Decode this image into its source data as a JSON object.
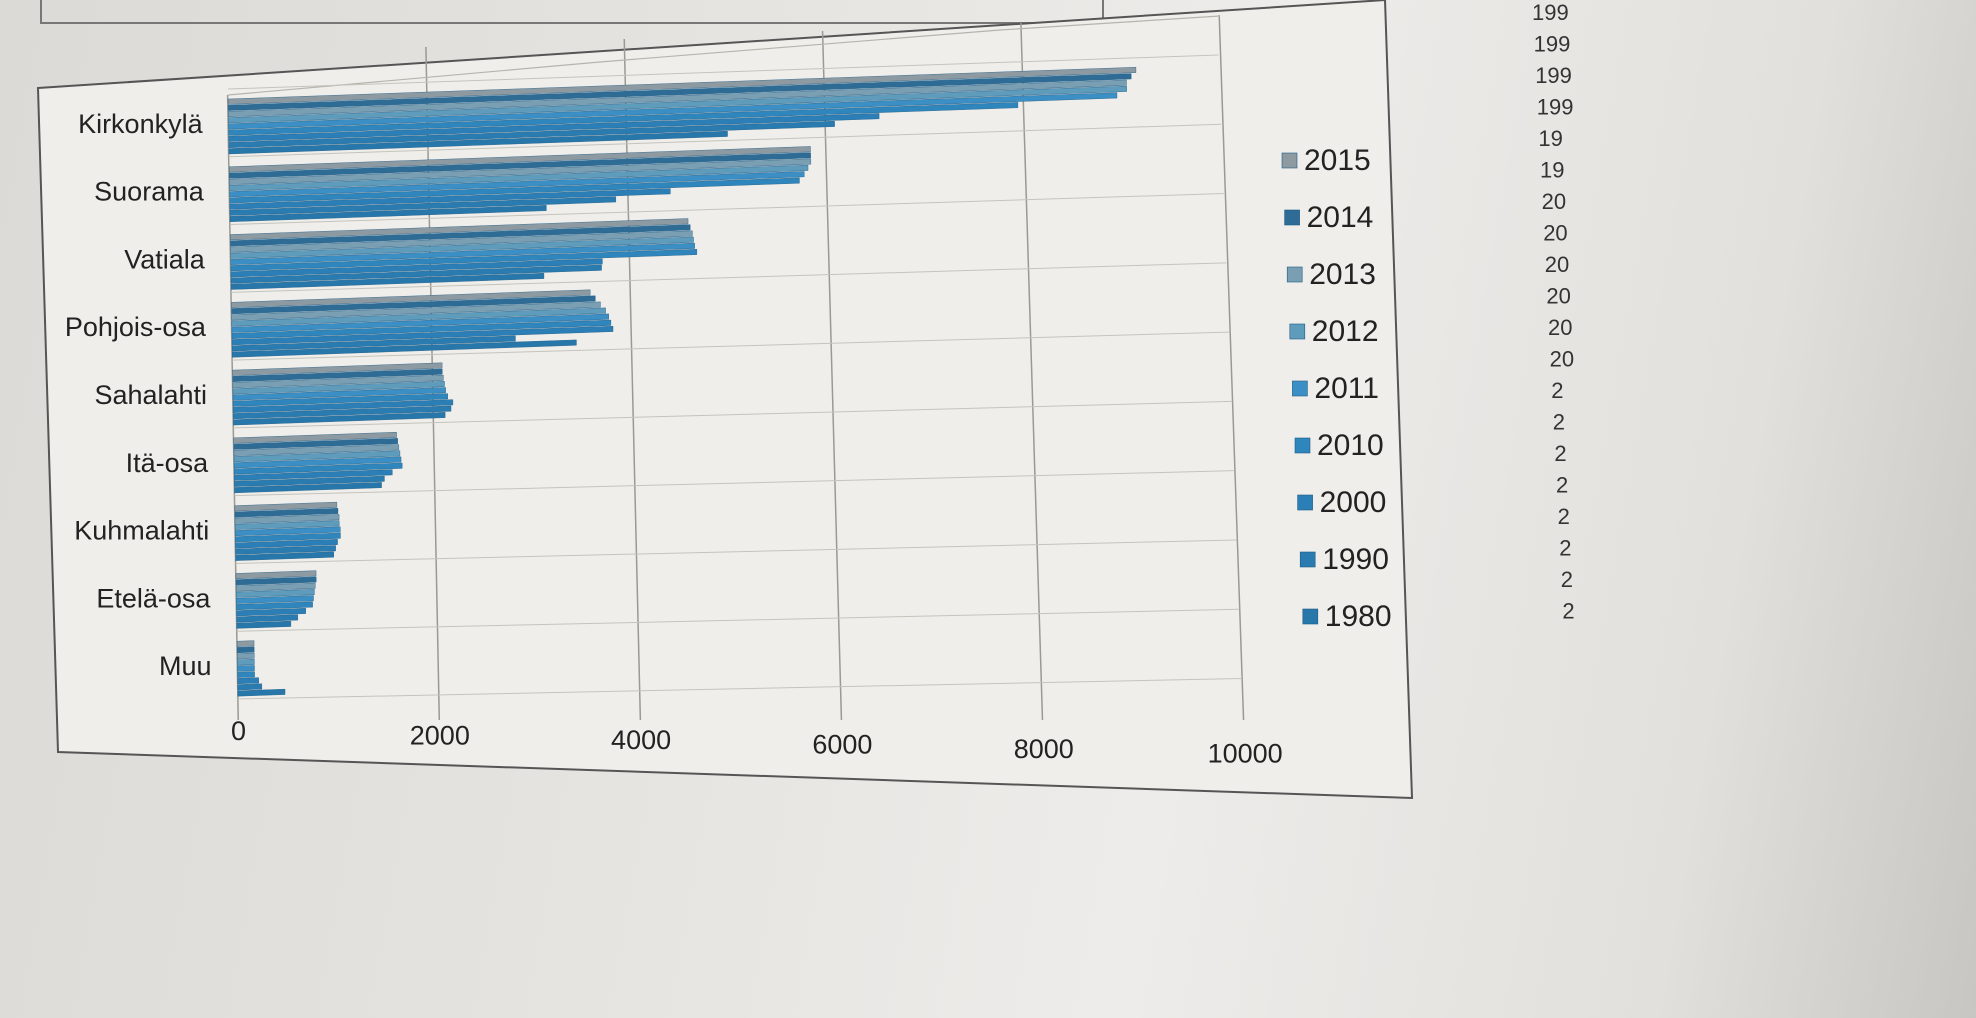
{
  "chart_data": {
    "type": "bar",
    "orientation": "horizontal",
    "title": "",
    "xlabel": "",
    "ylabel": "",
    "categories": [
      "Kirkonkylä",
      "Suorama",
      "Vatiala",
      "Pohjois-osa",
      "Sahalahti",
      "Itä-osa",
      "Kuhmalahti",
      "Etelä-osa",
      "Muu"
    ],
    "x_ticks": [
      "0",
      "2000",
      "4000",
      "6000",
      "8000",
      "10000"
    ],
    "xlim": [
      0,
      10000
    ],
    "grid": "vertical",
    "legend_position": "right",
    "series": [
      {
        "name": "2015",
        "color": "#8e9aa2",
        "values": [
          9150,
          5850,
          4600,
          3600,
          2100,
          1630,
          1020,
          800,
          170
        ]
      },
      {
        "name": "2014",
        "color": "#2e6c95",
        "values": [
          9100,
          5850,
          4620,
          3650,
          2100,
          1640,
          1030,
          800,
          170
        ]
      },
      {
        "name": "2013",
        "color": "#7a9eb2",
        "values": [
          9050,
          5850,
          4640,
          3700,
          2110,
          1650,
          1040,
          790,
          170
        ]
      },
      {
        "name": "2012",
        "color": "#5f9bbb",
        "values": [
          9050,
          5820,
          4650,
          3750,
          2120,
          1660,
          1040,
          780,
          170
        ]
      },
      {
        "name": "2011",
        "color": "#3c8fc4",
        "values": [
          8950,
          5780,
          4660,
          3780,
          2130,
          1670,
          1050,
          770,
          170
        ]
      },
      {
        "name": "2010",
        "color": "#2f86bd",
        "values": [
          7950,
          5730,
          4680,
          3800,
          2150,
          1680,
          1050,
          760,
          170
        ]
      },
      {
        "name": "2000",
        "color": "#2b7fb6",
        "values": [
          6550,
          4430,
          3730,
          3820,
          2200,
          1580,
          1020,
          690,
          210
        ]
      },
      {
        "name": "1990",
        "color": "#2a7bb0",
        "values": [
          6100,
          3880,
          3720,
          2840,
          2180,
          1500,
          1000,
          610,
          240
        ]
      },
      {
        "name": "1980",
        "color": "#2777ab",
        "values": [
          5020,
          3180,
          3140,
          3450,
          2120,
          1470,
          980,
          540,
          470
        ]
      }
    ]
  },
  "margin_years": [
    "199",
    "199",
    "199",
    "199",
    "19",
    "19",
    "20",
    "20",
    "20",
    "20",
    "20",
    "20",
    "2",
    "2",
    "2",
    "2",
    "2",
    "2",
    "2",
    "2"
  ]
}
